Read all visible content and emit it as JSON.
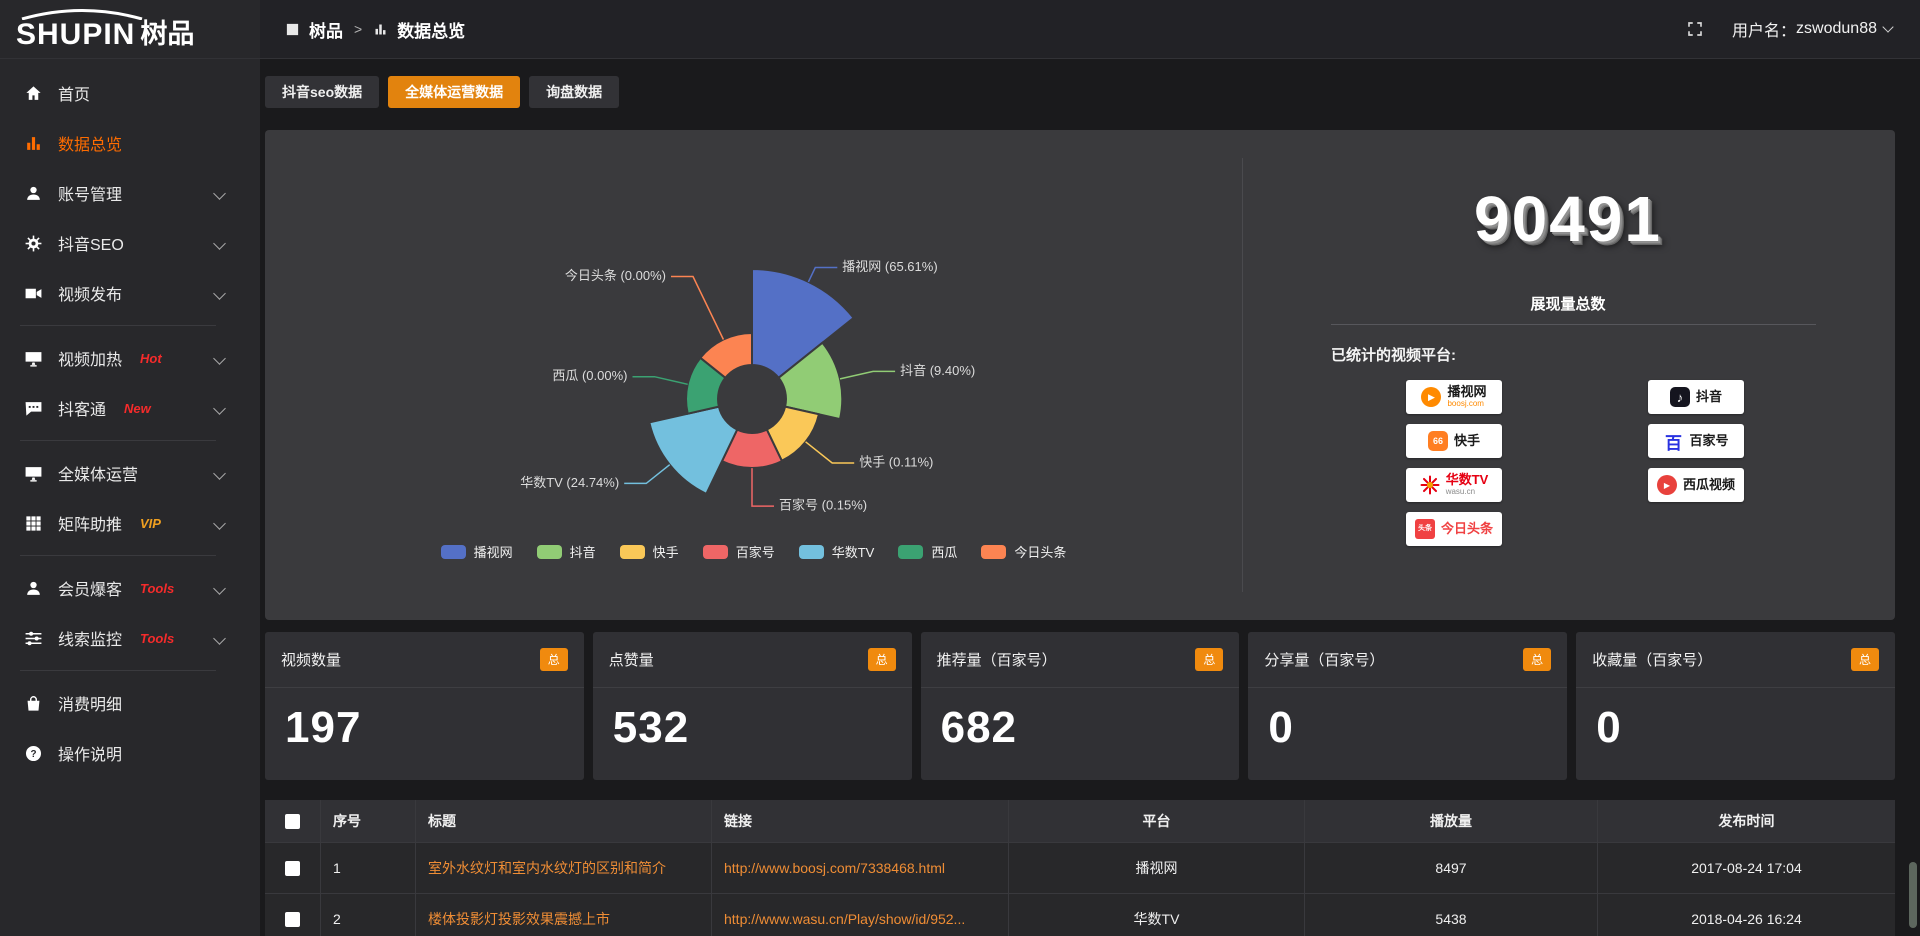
{
  "logo": {
    "brand_en": "SHUPIN",
    "brand_cn": "树品"
  },
  "topbar": {
    "breadcrumb_root": "树品",
    "breadcrumb_sep": ">",
    "breadcrumb_current": "数据总览",
    "breadcrumb_root_icon": "app-square-icon",
    "breadcrumb_current_icon": "bar-chart-icon",
    "fullscreen_icon": "fullscreen-icon",
    "username_label": "用户名：",
    "username": "zswodun88"
  },
  "sidebar": {
    "items": [
      {
        "label": "首页",
        "icon": "home-icon",
        "active": false,
        "chevron": false,
        "badge": "",
        "badge_color": "",
        "divider_after": false
      },
      {
        "label": "数据总览",
        "icon": "bar-chart-icon",
        "active": true,
        "chevron": false,
        "badge": "",
        "badge_color": "",
        "divider_after": false
      },
      {
        "label": "账号管理",
        "icon": "user-icon",
        "active": false,
        "chevron": true,
        "badge": "",
        "badge_color": "",
        "divider_after": false
      },
      {
        "label": "抖音SEO",
        "icon": "gear-icon",
        "active": false,
        "chevron": true,
        "badge": "",
        "badge_color": "",
        "divider_after": false
      },
      {
        "label": "视频发布",
        "icon": "video-camera-icon",
        "active": false,
        "chevron": true,
        "badge": "",
        "badge_color": "",
        "divider_after": true
      },
      {
        "label": "视频加热",
        "icon": "heat-monitor-icon",
        "active": false,
        "chevron": true,
        "badge": "Hot",
        "badge_color": "#f52b2b",
        "divider_after": false
      },
      {
        "label": "抖客通",
        "icon": "chat-icon",
        "active": false,
        "chevron": true,
        "badge": "New",
        "badge_color": "#f52b2b",
        "divider_after": true
      },
      {
        "label": "全媒体运营",
        "icon": "monitor-icon",
        "active": false,
        "chevron": true,
        "badge": "",
        "badge_color": "",
        "divider_after": false
      },
      {
        "label": "矩阵助推",
        "icon": "grid-icon",
        "active": false,
        "chevron": true,
        "badge": "VIP",
        "badge_color": "#f0a020",
        "divider_after": true
      },
      {
        "label": "会员爆客",
        "icon": "member-icon",
        "active": false,
        "chevron": true,
        "badge": "Tools",
        "badge_color": "#f52b2b",
        "divider_after": false
      },
      {
        "label": "线索监控",
        "icon": "sliders-icon",
        "active": false,
        "chevron": true,
        "badge": "Tools",
        "badge_color": "#f52b2b",
        "divider_after": true
      },
      {
        "label": "消费明细",
        "icon": "wallet-icon",
        "active": false,
        "chevron": false,
        "badge": "",
        "badge_color": "",
        "divider_after": false
      },
      {
        "label": "操作说明",
        "icon": "question-icon",
        "active": false,
        "chevron": false,
        "badge": "",
        "badge_color": "",
        "divider_after": false
      }
    ]
  },
  "tabs": [
    {
      "label": "抖音seo数据",
      "active": false
    },
    {
      "label": "全媒体运营数据",
      "active": true
    },
    {
      "label": "询盘数据",
      "active": false
    }
  ],
  "chart_data": {
    "type": "pie",
    "style": "nightingale-rose-donut",
    "title": "",
    "labels": [
      "播视网",
      "抖音",
      "快手",
      "百家号",
      "华数TV",
      "西瓜",
      "今日头条"
    ],
    "values": [
      65.61,
      9.4,
      0.11,
      0.15,
      24.74,
      0.0,
      0.0
    ],
    "unit": "%",
    "label_format": "{name} ({value}%)",
    "colors": [
      "#5470c6",
      "#91cc75",
      "#fac858",
      "#ee6666",
      "#73c0de",
      "#3ba272",
      "#fc8452"
    ],
    "legend": [
      "播视网",
      "抖音",
      "快手",
      "百家号",
      "华数TV",
      "西瓜",
      "今日头条"
    ],
    "legend_position": "bottom"
  },
  "summary": {
    "total_value": "90491",
    "total_label": "展现量总数",
    "platforms_label": "已统计的视频平台:",
    "platforms": [
      {
        "name": "播视网",
        "sub": "boosj.com",
        "logo": "boosj-logo"
      },
      {
        "name": "抖音",
        "sub": "",
        "logo": "douyin-logo"
      },
      {
        "name": "快手",
        "sub": "",
        "logo": "kuaishou-logo"
      },
      {
        "name": "百家号",
        "sub": "",
        "logo": "baijiahao-logo"
      },
      {
        "name": "华数TV",
        "sub": "wasu.cn",
        "logo": "wasu-logo"
      },
      {
        "name": "西瓜视频",
        "sub": "",
        "logo": "xigua-logo"
      },
      {
        "name": "今日头条",
        "sub": "",
        "logo": "toutiao-logo"
      }
    ]
  },
  "stat_cards": [
    {
      "title": "视频数量",
      "badge": "总",
      "value": "197"
    },
    {
      "title": "点赞量",
      "badge": "总",
      "value": "532"
    },
    {
      "title": "推荐量（百家号）",
      "badge": "总",
      "value": "682"
    },
    {
      "title": "分享量（百家号）",
      "badge": "总",
      "value": "0"
    },
    {
      "title": "收藏量（百家号）",
      "badge": "总",
      "value": "0"
    }
  ],
  "table": {
    "headers": [
      "序号",
      "标题",
      "链接",
      "平台",
      "播放量",
      "发布时间"
    ],
    "rows": [
      {
        "no": "1",
        "title": "室外水纹灯和室内水纹灯的区别和简介",
        "link": "http://www.boosj.com/7338468.html",
        "platform": "播视网",
        "plays": "8497",
        "time": "2017-08-24 17:04"
      },
      {
        "no": "2",
        "title": "楼体投影灯投影效果震撼上市",
        "link": "http://www.wasu.cn/Play/show/id/952...",
        "platform": "华数TV",
        "plays": "5438",
        "time": "2018-04-26 16:24"
      }
    ]
  },
  "colors": {
    "accent_orange": "#e2830e",
    "sidebar_active_orange": "#ff6c00",
    "link_orange": "#ef8d35",
    "badge_orange": "#f08a0e",
    "hot_red": "#f52b2b",
    "vip_gold": "#f0a020",
    "panel_bg": "#3a3a3d",
    "page_bg": "#1a1a1c"
  }
}
